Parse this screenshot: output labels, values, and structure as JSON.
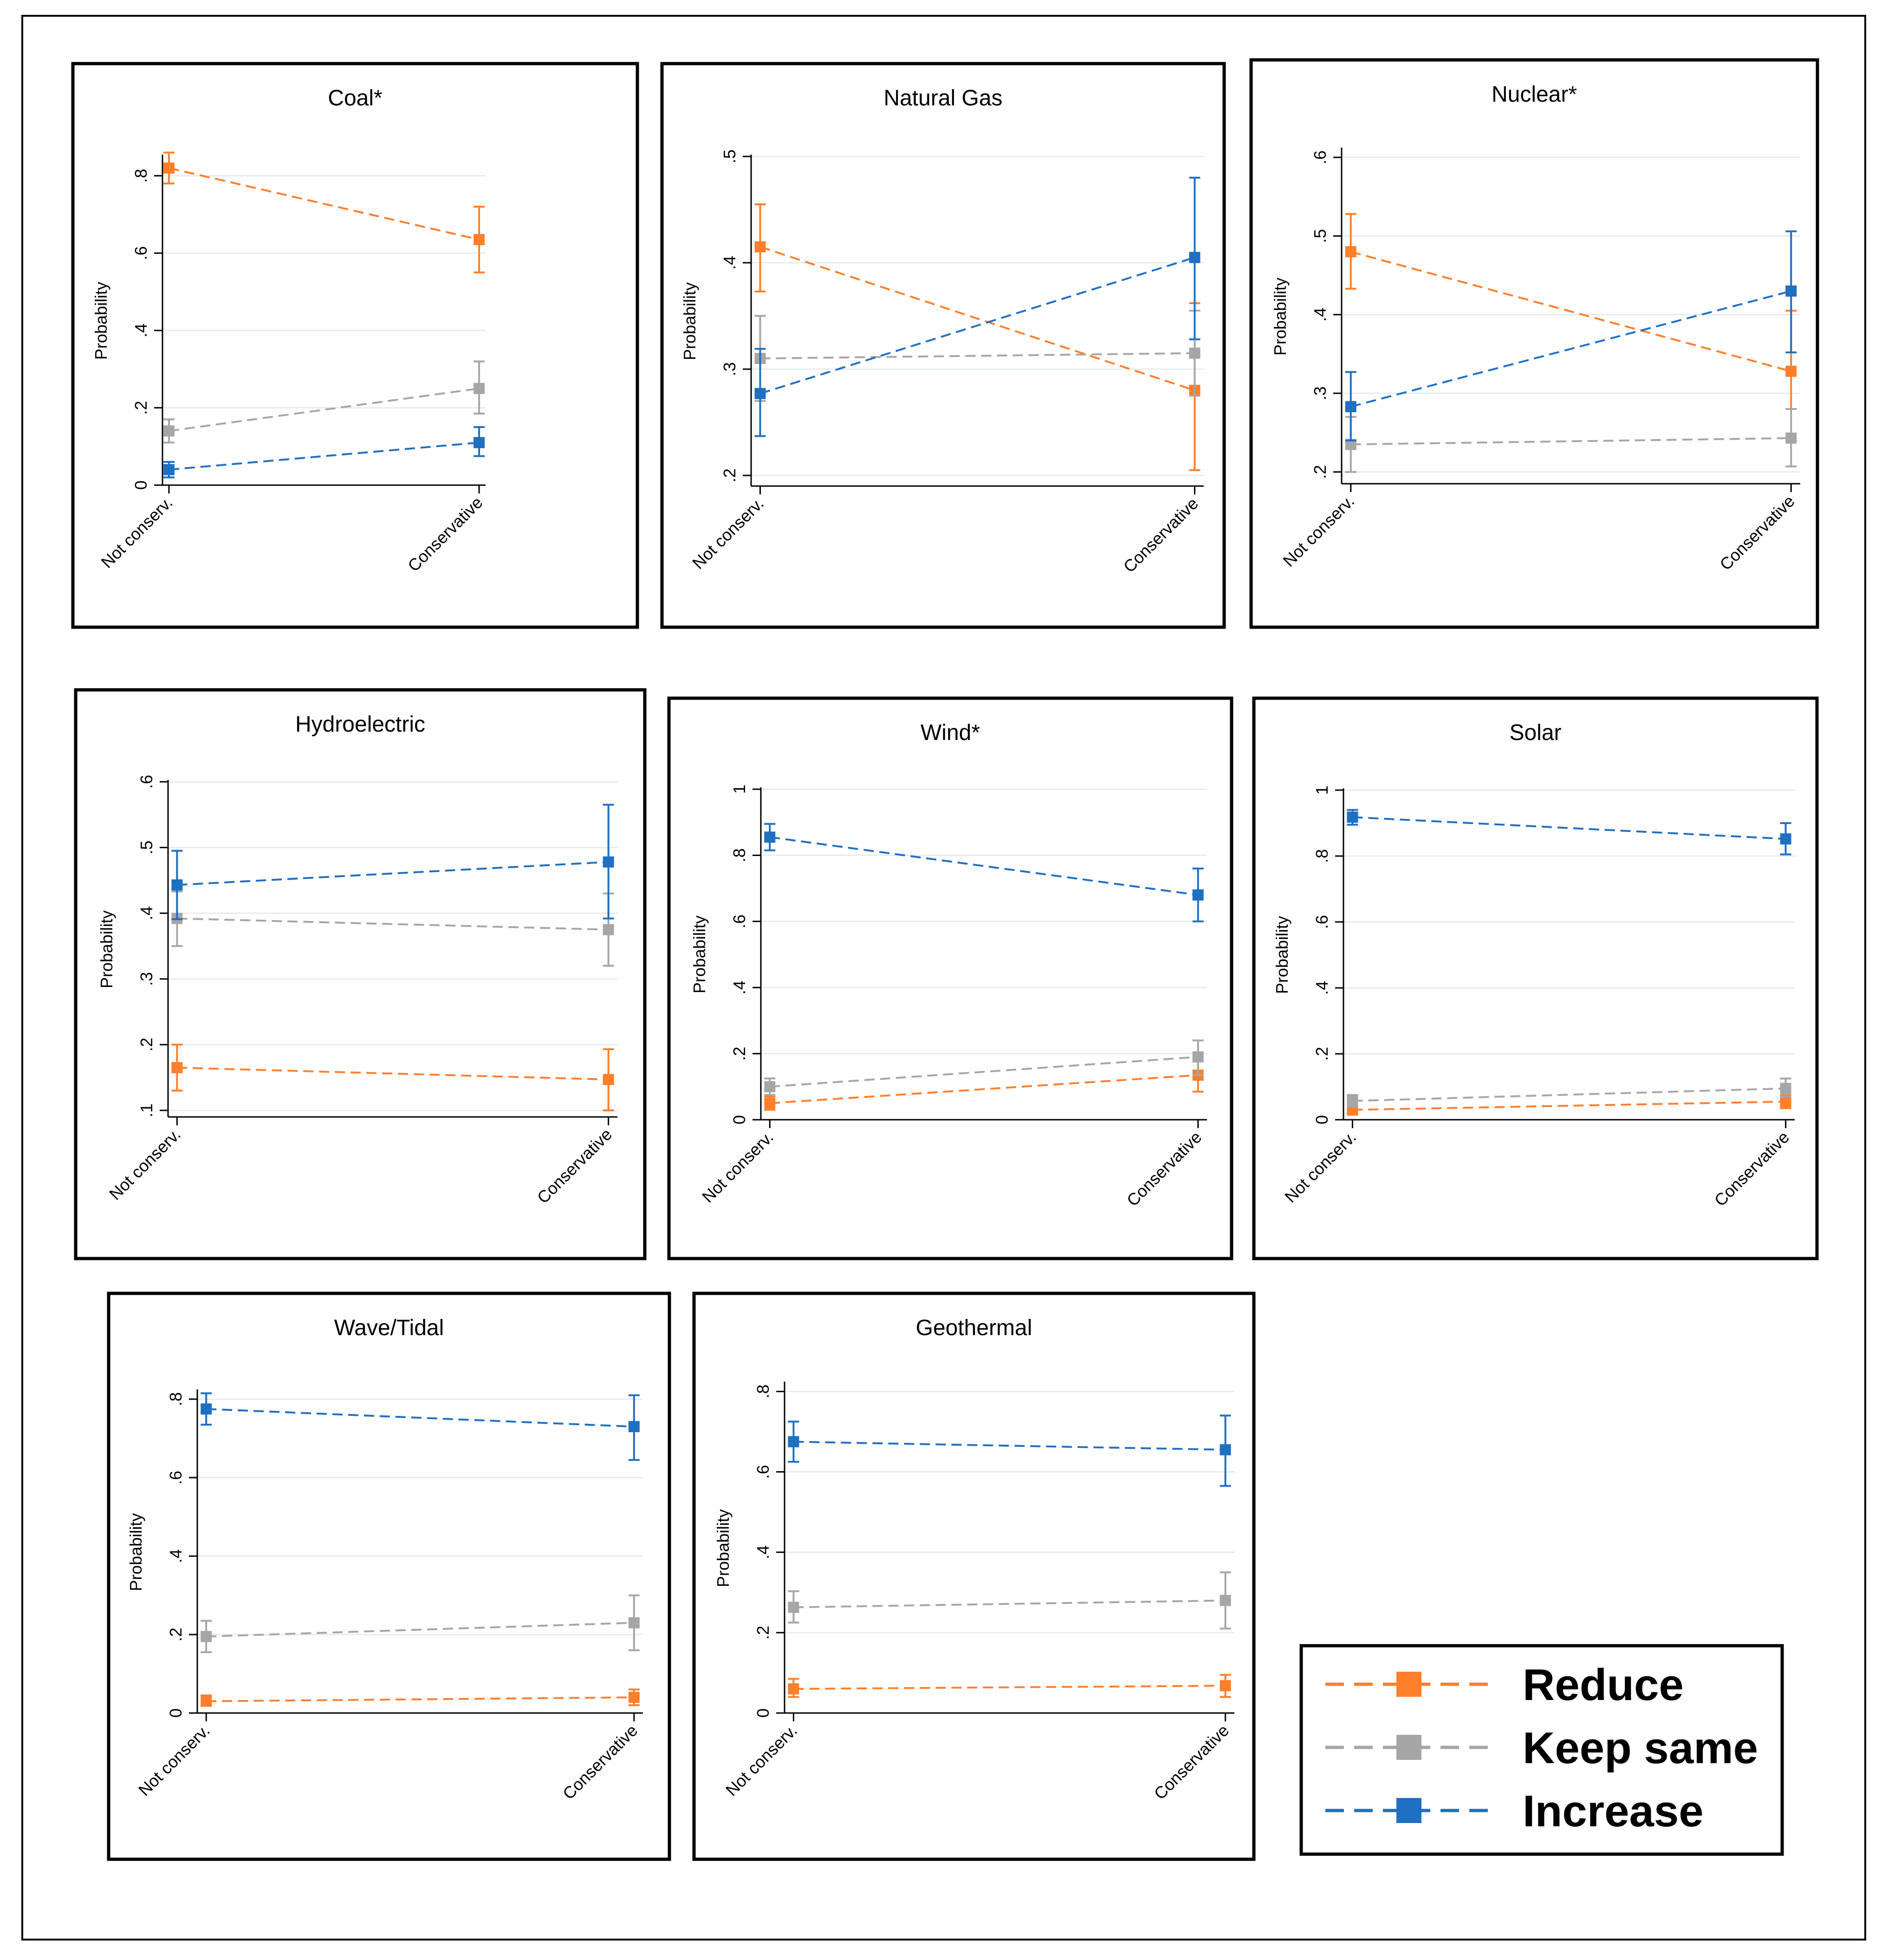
{
  "chart_data": [
    {
      "type": "line",
      "title": "Coal*",
      "xlabel": "",
      "ylabel": "Probability",
      "categories": [
        "Not conserv.",
        "Conservative"
      ],
      "ylim": [
        0,
        0.85
      ],
      "yticks": [
        0,
        0.2,
        0.4,
        0.6,
        0.8
      ],
      "ytick_labels": [
        "0",
        ".2",
        ".4",
        ".6",
        ".8"
      ],
      "series": [
        {
          "name": "Reduce",
          "values": [
            0.82,
            0.635
          ],
          "lower": [
            0.78,
            0.55
          ],
          "upper": [
            0.86,
            0.72
          ]
        },
        {
          "name": "Keep same",
          "values": [
            0.14,
            0.25
          ],
          "lower": [
            0.11,
            0.185
          ],
          "upper": [
            0.17,
            0.32
          ]
        },
        {
          "name": "Increase",
          "values": [
            0.04,
            0.11
          ],
          "lower": [
            0.02,
            0.075
          ],
          "upper": [
            0.06,
            0.15
          ]
        }
      ]
    },
    {
      "type": "line",
      "title": "Natural Gas",
      "xlabel": "",
      "ylabel": "Probability",
      "categories": [
        "Not conserv.",
        "Conservative"
      ],
      "ylim": [
        0.19,
        0.5
      ],
      "yticks": [
        0.2,
        0.3,
        0.4,
        0.5
      ],
      "ytick_labels": [
        ".2",
        ".3",
        ".4",
        ".5"
      ],
      "series": [
        {
          "name": "Reduce",
          "values": [
            0.415,
            0.28
          ],
          "lower": [
            0.373,
            0.205
          ],
          "upper": [
            0.455,
            0.362
          ]
        },
        {
          "name": "Keep same",
          "values": [
            0.31,
            0.315
          ],
          "lower": [
            0.27,
            0.275
          ],
          "upper": [
            0.35,
            0.355
          ]
        },
        {
          "name": "Increase",
          "values": [
            0.277,
            0.405
          ],
          "lower": [
            0.237,
            0.328
          ],
          "upper": [
            0.319,
            0.48
          ]
        }
      ]
    },
    {
      "type": "line",
      "title": "Nuclear*",
      "xlabel": "",
      "ylabel": "Probability",
      "categories": [
        "Not conserv.",
        "Conservative"
      ],
      "ylim": [
        0.185,
        0.61
      ],
      "yticks": [
        0.2,
        0.3,
        0.4,
        0.5,
        0.6
      ],
      "ytick_labels": [
        ".2",
        ".3",
        ".4",
        ".5",
        ".6"
      ],
      "series": [
        {
          "name": "Reduce",
          "values": [
            0.48,
            0.328
          ],
          "lower": [
            0.433,
            0.28
          ],
          "upper": [
            0.528,
            0.405
          ]
        },
        {
          "name": "Keep same",
          "values": [
            0.235,
            0.243
          ],
          "lower": [
            0.2,
            0.207
          ],
          "upper": [
            0.27,
            0.28
          ]
        },
        {
          "name": "Increase",
          "values": [
            0.283,
            0.43
          ],
          "lower": [
            0.24,
            0.352
          ],
          "upper": [
            0.327,
            0.506
          ]
        }
      ]
    },
    {
      "type": "line",
      "title": "Hydroelectric",
      "xlabel": "",
      "ylabel": "Probability",
      "categories": [
        "Not conserv.",
        "Conservative"
      ],
      "ylim": [
        0.09,
        0.6
      ],
      "yticks": [
        0.1,
        0.2,
        0.3,
        0.4,
        0.5,
        0.6
      ],
      "ytick_labels": [
        ".1",
        ".2",
        ".3",
        ".4",
        ".5",
        ".6"
      ],
      "series": [
        {
          "name": "Reduce",
          "values": [
            0.165,
            0.147
          ],
          "lower": [
            0.13,
            0.1
          ],
          "upper": [
            0.2,
            0.193
          ]
        },
        {
          "name": "Keep same",
          "values": [
            0.392,
            0.375
          ],
          "lower": [
            0.35,
            0.32
          ],
          "upper": [
            0.433,
            0.43
          ]
        },
        {
          "name": "Increase",
          "values": [
            0.443,
            0.478
          ],
          "lower": [
            0.391,
            0.392
          ],
          "upper": [
            0.495,
            0.565
          ]
        }
      ]
    },
    {
      "type": "line",
      "title": "Wind*",
      "xlabel": "",
      "ylabel": "Probability",
      "categories": [
        "Not conserv.",
        "Conservative"
      ],
      "ylim": [
        0,
        1
      ],
      "yticks": [
        0,
        0.2,
        0.4,
        0.6,
        0.8,
        1
      ],
      "ytick_labels": [
        "0",
        ".2",
        ".4",
        ".6",
        ".8",
        "1"
      ],
      "series": [
        {
          "name": "Reduce",
          "values": [
            0.05,
            0.135
          ],
          "lower": [
            0.03,
            0.085
          ],
          "upper": [
            0.07,
            0.18
          ]
        },
        {
          "name": "Keep same",
          "values": [
            0.1,
            0.19
          ],
          "lower": [
            0.075,
            0.135
          ],
          "upper": [
            0.125,
            0.24
          ]
        },
        {
          "name": "Increase",
          "values": [
            0.855,
            0.68
          ],
          "lower": [
            0.815,
            0.6
          ],
          "upper": [
            0.895,
            0.76
          ]
        }
      ]
    },
    {
      "type": "line",
      "title": "Solar",
      "xlabel": "",
      "ylabel": "Probability",
      "categories": [
        "Not conserv.",
        "Conservative"
      ],
      "ylim": [
        0,
        1
      ],
      "yticks": [
        0,
        0.2,
        0.4,
        0.6,
        0.8,
        1
      ],
      "ytick_labels": [
        "0",
        ".2",
        ".4",
        ".6",
        ".8",
        "1"
      ],
      "series": [
        {
          "name": "Reduce",
          "values": [
            0.03,
            0.055
          ],
          "lower": [
            0.015,
            0.035
          ],
          "upper": [
            0.045,
            0.075
          ]
        },
        {
          "name": "Keep same",
          "values": [
            0.057,
            0.095
          ],
          "lower": [
            0.04,
            0.07
          ],
          "upper": [
            0.075,
            0.125
          ]
        },
        {
          "name": "Increase",
          "values": [
            0.918,
            0.852
          ],
          "lower": [
            0.895,
            0.805
          ],
          "upper": [
            0.94,
            0.9
          ]
        }
      ]
    },
    {
      "type": "line",
      "title": "Wave/Tidal",
      "xlabel": "",
      "ylabel": "Probability",
      "categories": [
        "Not conserv.",
        "Conservative"
      ],
      "ylim": [
        0,
        0.82
      ],
      "yticks": [
        0,
        0.2,
        0.4,
        0.6,
        0.8
      ],
      "ytick_labels": [
        "0",
        ".2",
        ".4",
        ".6",
        ".8"
      ],
      "series": [
        {
          "name": "Reduce",
          "values": [
            0.03,
            0.04
          ],
          "lower": [
            0.02,
            0.02
          ],
          "upper": [
            0.045,
            0.06
          ]
        },
        {
          "name": "Keep same",
          "values": [
            0.195,
            0.23
          ],
          "lower": [
            0.155,
            0.16
          ],
          "upper": [
            0.235,
            0.3
          ]
        },
        {
          "name": "Increase",
          "values": [
            0.775,
            0.73
          ],
          "lower": [
            0.735,
            0.645
          ],
          "upper": [
            0.815,
            0.81
          ]
        }
      ]
    },
    {
      "type": "line",
      "title": "Geothermal",
      "xlabel": "",
      "ylabel": "Probability",
      "categories": [
        "Not conserv.",
        "Conservative"
      ],
      "ylim": [
        0,
        0.82
      ],
      "yticks": [
        0,
        0.2,
        0.4,
        0.6,
        0.8
      ],
      "ytick_labels": [
        "0",
        ".2",
        ".4",
        ".6",
        ".8"
      ],
      "series": [
        {
          "name": "Reduce",
          "values": [
            0.06,
            0.068
          ],
          "lower": [
            0.04,
            0.04
          ],
          "upper": [
            0.085,
            0.095
          ]
        },
        {
          "name": "Keep same",
          "values": [
            0.263,
            0.28
          ],
          "lower": [
            0.225,
            0.21
          ],
          "upper": [
            0.303,
            0.35
          ]
        },
        {
          "name": "Increase",
          "values": [
            0.675,
            0.655
          ],
          "lower": [
            0.625,
            0.565
          ],
          "upper": [
            0.725,
            0.74
          ]
        }
      ]
    }
  ],
  "legend": {
    "items": [
      {
        "name": "Reduce",
        "color": "#ff7f2a"
      },
      {
        "name": "Keep same",
        "color": "#a6a6a6"
      },
      {
        "name": "Increase",
        "color": "#1f6fc2"
      }
    ]
  },
  "colors": {
    "Reduce": "#ff7f2a",
    "Keep same": "#a6a6a6",
    "Increase": "#1f6fc2"
  }
}
